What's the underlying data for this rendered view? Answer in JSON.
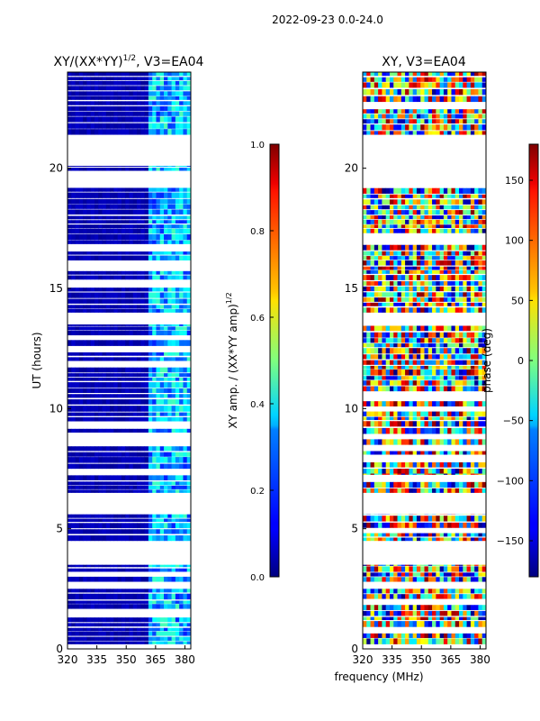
{
  "suptitle": "2022-09-23 0.0-24.0",
  "chart_data": [
    {
      "type": "heatmap",
      "title_main": "XY/(XX*YY)",
      "title_sup": "1/2",
      "title_tail": ", V3=EA04",
      "xlabel": "",
      "ylabel": "UT (hours)",
      "xlim": [
        320,
        383
      ],
      "ylim": [
        0,
        24
      ],
      "xticks": [
        320,
        335,
        350,
        365,
        380
      ],
      "yticks": [
        0,
        5,
        10,
        15,
        20
      ],
      "colorbar": {
        "label_main": "XY amp. / (XX*YY amp)",
        "label_sup": "1/2",
        "range": [
          0.0,
          1.0
        ],
        "ticks": [
          "0.0",
          "0.2",
          "0.4",
          "0.6",
          "0.8",
          "1.0"
        ],
        "tick_values": [
          0.0,
          0.2,
          0.4,
          0.6,
          0.8,
          1.0
        ]
      },
      "data_bands_hours": [
        [
          0.2,
          2.5
        ],
        [
          2.8,
          3.5
        ],
        [
          4.5,
          5.6
        ],
        [
          6.5,
          7.3
        ],
        [
          7.3,
          13.5
        ],
        [
          14.0,
          19.2
        ],
        [
          19.9,
          20.1
        ],
        [
          21.4,
          24.0
        ]
      ],
      "low_freq_level": 0.05,
      "high_freq_start_mhz": 362,
      "high_freq_level_range": [
        0.15,
        0.45
      ]
    },
    {
      "type": "heatmap",
      "title_main": "XY, V3=EA04",
      "xlabel": "frequency (MHz)",
      "ylabel": "",
      "xlim": [
        320,
        383
      ],
      "ylim": [
        0,
        24
      ],
      "xticks": [
        320,
        335,
        350,
        365,
        380
      ],
      "yticks": [
        0,
        5,
        10,
        15,
        20
      ],
      "colorbar": {
        "label": "phase (deg)",
        "range": [
          -180,
          180
        ],
        "ticks": [
          "−150",
          "−100",
          "−50",
          "0",
          "50",
          "100",
          "150"
        ],
        "tick_values": [
          -150,
          -100,
          -50,
          0,
          50,
          100,
          150
        ]
      },
      "data_bands_hours": [
        [
          0.2,
          2.5
        ],
        [
          2.8,
          3.5
        ],
        [
          4.5,
          5.6
        ],
        [
          6.5,
          7.3
        ],
        [
          7.3,
          13.5
        ],
        [
          14.0,
          19.2
        ],
        [
          19.9,
          20.1
        ],
        [
          21.4,
          24.0
        ]
      ]
    }
  ]
}
